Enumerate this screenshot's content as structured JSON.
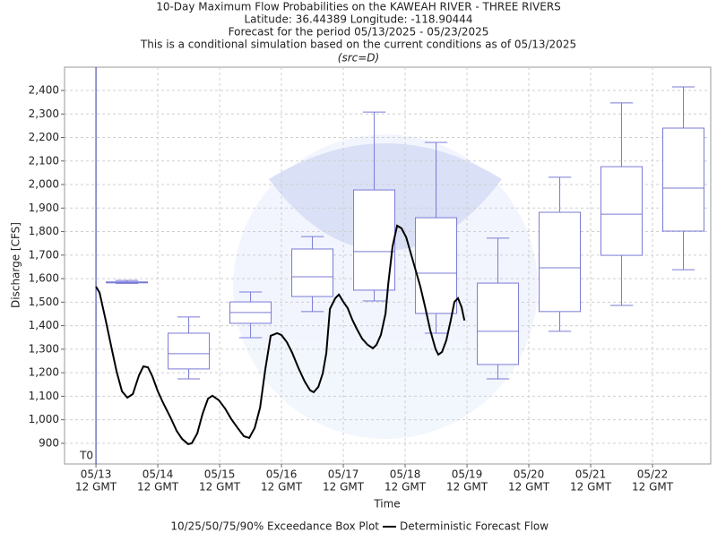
{
  "chart_data": {
    "type": "box",
    "title_lines": [
      "10-Day Maximum Flow Probabilities on the KAWEAH RIVER - THREE RIVERS",
      "Latitude: 36.44389 Longitude: -118.90444",
      "Forecast for the period 05/13/2025 - 05/23/2025",
      "This is a conditional simulation based on the current conditions as of 05/13/2025"
    ],
    "subtitle": "(src=D)",
    "x_label": "Time",
    "y_label": "Discharge [CFS]",
    "t0_label": "T0",
    "t0_x": 0,
    "x_tick_time": "12 GMT",
    "xlim": [
      -12.2,
      238.6
    ],
    "xticks": [
      {
        "value": 0,
        "label": "05/13"
      },
      {
        "value": 24,
        "label": "05/14"
      },
      {
        "value": 48,
        "label": "05/15"
      },
      {
        "value": 72,
        "label": "05/16"
      },
      {
        "value": 96,
        "label": "05/17"
      },
      {
        "value": 120,
        "label": "05/18"
      },
      {
        "value": 144,
        "label": "05/19"
      },
      {
        "value": 168,
        "label": "05/20"
      },
      {
        "value": 192,
        "label": "05/21"
      },
      {
        "value": 216,
        "label": "05/22"
      }
    ],
    "ylim": [
      812,
      2499
    ],
    "yticks": [
      900,
      {
        "value": 1000,
        "label": "1,000"
      },
      {
        "value": 1100,
        "label": "1,100"
      },
      {
        "value": 1200,
        "label": "1,200"
      },
      {
        "value": 1300,
        "label": "1,300"
      },
      {
        "value": 1400,
        "label": "1,400"
      },
      {
        "value": 1500,
        "label": "1,500"
      },
      {
        "value": 1600,
        "label": "1,600"
      },
      {
        "value": 1700,
        "label": "1,700"
      },
      {
        "value": 1800,
        "label": "1,800"
      },
      {
        "value": 1900,
        "label": "1,900"
      },
      {
        "value": 2000,
        "label": "2,000"
      },
      {
        "value": 2100,
        "label": "2,100"
      },
      {
        "value": 2200,
        "label": "2,200"
      },
      {
        "value": 2300,
        "label": "2,300"
      },
      {
        "value": 2400,
        "label": "2,400"
      }
    ],
    "grid": true,
    "box_name": "10/25/50/75/90% Exceedance Box Plot",
    "box_color": "#7a7ad6",
    "box_width": 16,
    "boxes": [
      {
        "x": 12,
        "p10": 1580,
        "p25": 1582,
        "p50": 1584,
        "p75": 1586,
        "p90": 1592
      },
      {
        "x": 36,
        "p10": 1174,
        "p25": 1216,
        "p50": 1281,
        "p75": 1368,
        "p90": 1437
      },
      {
        "x": 60,
        "p10": 1349,
        "p25": 1410,
        "p50": 1456,
        "p75": 1501,
        "p90": 1543
      },
      {
        "x": 84,
        "p10": 1460,
        "p25": 1524,
        "p50": 1608,
        "p75": 1726,
        "p90": 1779
      },
      {
        "x": 108,
        "p10": 1505,
        "p25": 1551,
        "p50": 1715,
        "p75": 1977,
        "p90": 2308
      },
      {
        "x": 132,
        "p10": 1368,
        "p25": 1452,
        "p50": 1623,
        "p75": 1859,
        "p90": 2179
      },
      {
        "x": 156,
        "p10": 1174,
        "p25": 1235,
        "p50": 1376,
        "p75": 1581,
        "p90": 1772
      },
      {
        "x": 180,
        "p10": 1376,
        "p25": 1460,
        "p50": 1646,
        "p75": 1882,
        "p90": 2031
      },
      {
        "x": 204,
        "p10": 1486,
        "p25": 1699,
        "p50": 1874,
        "p75": 2076,
        "p90": 2347
      },
      {
        "x": 228,
        "p10": 1638,
        "p25": 1802,
        "p50": 1985,
        "p75": 2240,
        "p90": 2415
      }
    ],
    "line": {
      "name": "Deterministic Forecast Flow",
      "color": "#000000",
      "x": [
        0,
        1.4,
        3.8,
        6.3,
        8.0,
        10.1,
        12.2,
        14.3,
        16.7,
        18.4,
        20.2,
        21.9,
        24.0,
        26.1,
        28.9,
        31.3,
        33.4,
        35.8,
        37.2,
        39.3,
        41.4,
        43.5,
        45.2,
        47.7,
        50.1,
        52.5,
        55.0,
        57.4,
        59.5,
        61.6,
        63.7,
        65.7,
        67.8,
        70.3,
        72.0,
        74.1,
        76.2,
        78.6,
        81.0,
        83.1,
        84.5,
        86.3,
        88.0,
        89.4,
        90.8,
        92.9,
        94.3,
        96.0,
        97.7,
        99.5,
        101.2,
        103.3,
        105.4,
        107.5,
        108.9,
        110.6,
        112.4,
        113.4,
        115.1,
        116.9,
        118.6,
        120.4,
        122.1,
        123.8,
        125.9,
        127.7,
        129.7,
        131.8,
        132.9,
        134.3,
        136.0,
        137.7,
        139.1,
        140.5,
        141.9,
        143.0
      ],
      "values": [
        1566,
        1540,
        1422,
        1292,
        1205,
        1121,
        1094,
        1109,
        1189,
        1227,
        1223,
        1185,
        1121,
        1071,
        1010,
        953,
        919,
        896,
        900,
        942,
        1026,
        1090,
        1102,
        1083,
        1048,
        1003,
        965,
        930,
        923,
        965,
        1052,
        1212,
        1357,
        1368,
        1360,
        1330,
        1284,
        1220,
        1163,
        1125,
        1117,
        1140,
        1197,
        1284,
        1471,
        1517,
        1532,
        1501,
        1475,
        1425,
        1387,
        1345,
        1319,
        1304,
        1319,
        1361,
        1452,
        1574,
        1737,
        1825,
        1814,
        1776,
        1711,
        1646,
        1566,
        1482,
        1383,
        1300,
        1277,
        1288,
        1338,
        1422,
        1501,
        1517,
        1479,
        1422
      ]
    }
  }
}
